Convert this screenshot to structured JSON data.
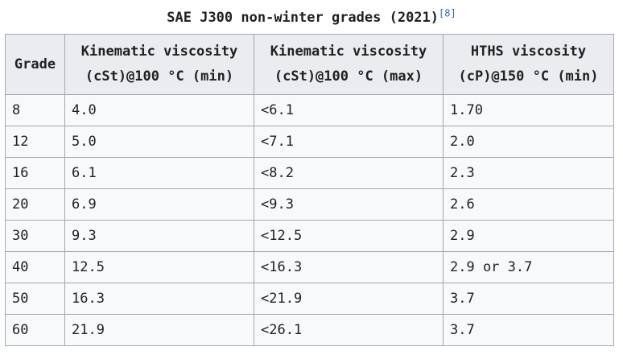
{
  "caption": {
    "title": "SAE J300 non-winter grades (2021)",
    "ref": "[8]"
  },
  "table": {
    "headers": [
      {
        "line1": "Grade",
        "line2": ""
      },
      {
        "line1": "Kinematic viscosity",
        "line2": "(cSt)@100 °C (min)"
      },
      {
        "line1": "Kinematic viscosity",
        "line2": "(cSt)@100 °C (max)"
      },
      {
        "line1": "HTHS viscosity",
        "line2": "(cP)@150 °C (min)"
      }
    ],
    "rows": [
      [
        "8",
        "4.0",
        "<6.1",
        "1.70"
      ],
      [
        "12",
        "5.0",
        "<7.1",
        "2.0"
      ],
      [
        "16",
        "6.1",
        "<8.2",
        "2.3"
      ],
      [
        "20",
        "6.9",
        "<9.3",
        "2.6"
      ],
      [
        "30",
        "9.3",
        "<12.5",
        "2.9"
      ],
      [
        "40",
        "12.5",
        "<16.3",
        "2.9 or 3.7"
      ],
      [
        "50",
        "16.3",
        "<21.9",
        "3.7"
      ],
      [
        "60",
        "21.9",
        "<26.1",
        "3.7"
      ]
    ]
  }
}
